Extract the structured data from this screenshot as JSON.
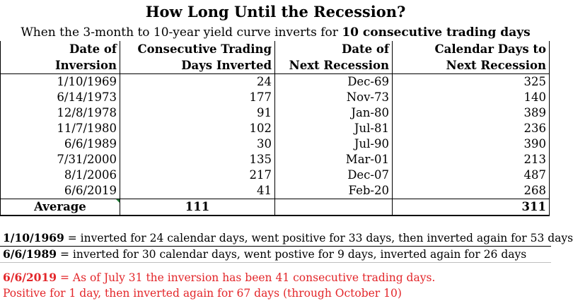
{
  "title": "How Long Until the Recession?",
  "subtitle": {
    "prefix": "When the 3-month to 10-year yield curve inverts for ",
    "bold": "10 consecutive trading days"
  },
  "headers": {
    "col1_line1": "Date of",
    "col1_line2": "Inversion",
    "col2_line1": "Consecutive Trading",
    "col2_line2": "Days Inverted",
    "col3_line1": "Date of",
    "col3_line2": "Next Recession",
    "col4_line1": "Calendar Days to",
    "col4_line2": "Next Recession"
  },
  "rows": [
    {
      "inversion": "1/10/1969",
      "days_inverted": "24",
      "recession": "Dec-69",
      "days_to": "325"
    },
    {
      "inversion": "6/14/1973",
      "days_inverted": "177",
      "recession": "Nov-73",
      "days_to": "140"
    },
    {
      "inversion": "12/8/1978",
      "days_inverted": "91",
      "recession": "Jan-80",
      "days_to": "389"
    },
    {
      "inversion": "11/7/1980",
      "days_inverted": "102",
      "recession": "Jul-81",
      "days_to": "236"
    },
    {
      "inversion": "6/6/1989",
      "days_inverted": "30",
      "recession": "Jul-90",
      "days_to": "390"
    },
    {
      "inversion": "7/31/2000",
      "days_inverted": "135",
      "recession": "Mar-01",
      "days_to": "213"
    },
    {
      "inversion": "8/1/2006",
      "days_inverted": "217",
      "recession": "Dec-07",
      "days_to": "487"
    },
    {
      "inversion": "6/6/2019",
      "days_inverted": "41",
      "recession": "Feb-20",
      "days_to": "268"
    }
  ],
  "average": {
    "label": "Average",
    "days_inverted": "111",
    "recession": "",
    "days_to": "311"
  },
  "notes": [
    {
      "bold": "1/10/1969",
      "text": " = inverted for 24 calendar days, went positive for 33 days, then inverted again for 53 days"
    },
    {
      "bold": "6/6/1989",
      "text": " = inverted for 30 calendar days, went postive for 9 days, inverted again for 26 days"
    },
    {
      "bold": "6/6/2019",
      "text": " = As of July 31 the inversion has been 41 consecutive trading days."
    },
    {
      "bold": "",
      "text": "Positive for 1 day, then inverted again for 67 days (through October 10)"
    }
  ],
  "colors": {
    "note_red": "#e3262a",
    "cell_marker_green": "#1e7b34"
  }
}
